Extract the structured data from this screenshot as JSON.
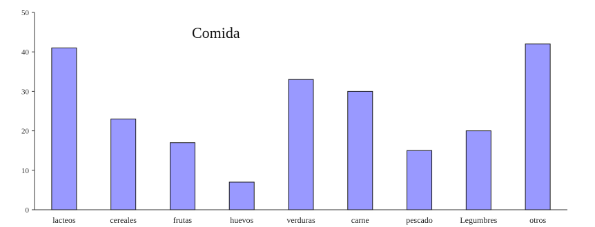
{
  "chart_data": {
    "type": "bar",
    "title": "Comida",
    "categories": [
      "lacteos",
      "cereales",
      "frutas",
      "huevos",
      "verduras",
      "carne",
      "pescado",
      "Legumbres",
      "otros"
    ],
    "values": [
      41,
      23,
      17,
      7,
      33,
      30,
      15,
      20,
      42
    ],
    "yticks": [
      "0",
      "10",
      "20",
      "30",
      "40",
      "50"
    ],
    "ylim": [
      0,
      50
    ],
    "grid": false,
    "legend": "none",
    "bar_color": "#9999ff",
    "bar_stroke": "#1a1a1a"
  }
}
